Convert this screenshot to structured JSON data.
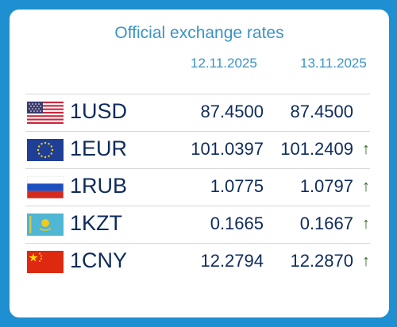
{
  "title": "Official exchange rates",
  "dates": [
    "12.11.2025",
    "13.11.2025"
  ],
  "rates": [
    {
      "code": "1USD",
      "flag": "us-flag-icon",
      "v1": "87.4500",
      "v2": "87.4500",
      "arrow": ""
    },
    {
      "code": "1EUR",
      "flag": "eu-flag-icon",
      "v1": "101.0397",
      "v2": "101.2409",
      "arrow": "↑"
    },
    {
      "code": "1RUB",
      "flag": "ru-flag-icon",
      "v1": "1.0775",
      "v2": "1.0797",
      "arrow": "↑"
    },
    {
      "code": "1KZT",
      "flag": "kz-flag-icon",
      "v1": "0.1665",
      "v2": "0.1667",
      "arrow": "↑"
    },
    {
      "code": "1CNY",
      "flag": "cn-flag-icon",
      "v1": "12.2794",
      "v2": "12.2870",
      "arrow": "↑"
    }
  ],
  "colors": {
    "title": "#3b93c6",
    "text": "#0e2b5c",
    "arrow": "#2d6a1f",
    "background": "#1e8fd0"
  }
}
